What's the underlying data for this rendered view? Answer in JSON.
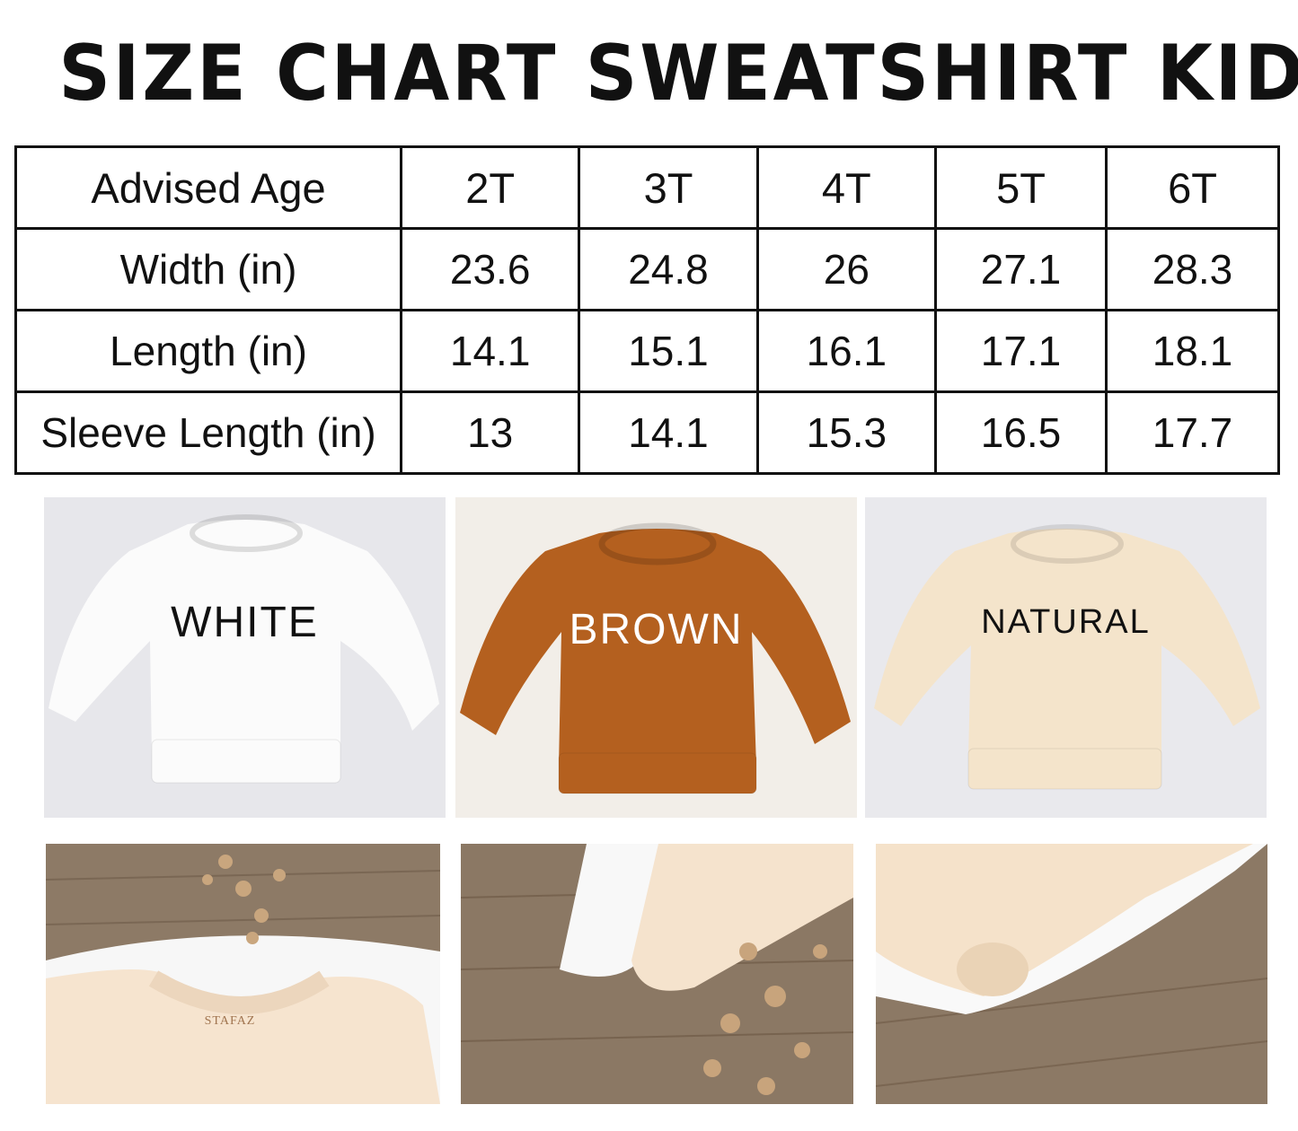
{
  "title": "SIZE CHART SWEATSHIRT KID",
  "table": {
    "header": [
      "Advised Age",
      "2T",
      "3T",
      "4T",
      "5T",
      "6T"
    ],
    "rows": [
      {
        "label": "Width (in)",
        "values": [
          "23.6",
          "24.8",
          "26",
          "27.1",
          "28.3"
        ]
      },
      {
        "label": "Length (in)",
        "values": [
          "14.1",
          "15.1",
          "16.1",
          "17.1",
          "18.1"
        ]
      },
      {
        "label": "Sleeve Length (in)",
        "values": [
          "13",
          "14.1",
          "15.3",
          "16.5",
          "17.7"
        ]
      }
    ]
  },
  "colors": [
    {
      "name": "WHITE",
      "shirt": "#fbfbfb",
      "background": "#e7e7eb",
      "text": "#111111"
    },
    {
      "name": "BROWN",
      "shirt": "#b4601f",
      "background": "#f2eee8",
      "text": "#ffffff"
    },
    {
      "name": "NATURAL",
      "shirt": "#f4e4cb",
      "background": "#e9e9ed",
      "text": "#111111"
    }
  ],
  "brand_tag": "STAFAZ"
}
